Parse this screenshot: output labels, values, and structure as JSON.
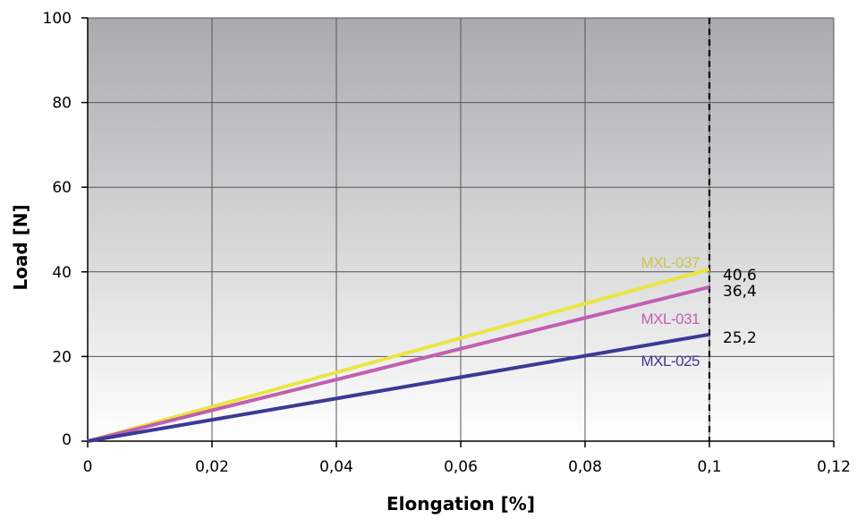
{
  "chart_data": {
    "type": "line",
    "title": "",
    "xlabel": "Elongation [%]",
    "ylabel": "Load [N]",
    "xlim": [
      0,
      0.12
    ],
    "ylim": [
      0,
      100
    ],
    "x_ticks": [
      0,
      0.02,
      0.04,
      0.06,
      0.08,
      0.1,
      0.12
    ],
    "x_tick_labels": [
      "0",
      "0,02",
      "0,04",
      "0,06",
      "0,08",
      "0,1",
      "0,12"
    ],
    "highlight_x": 0.1,
    "highlight_color": "#e02020",
    "y_ticks": [
      0,
      20,
      40,
      60,
      80,
      100
    ],
    "y_tick_labels": [
      "0",
      "20",
      "40",
      "60",
      "80",
      "100"
    ],
    "grid": true,
    "background_gradient": [
      "#a9aaac",
      "#ffffff"
    ],
    "series": [
      {
        "name": "MXL-037",
        "color": "#e8e640",
        "label_color": "#c9c54a",
        "x": [
          0,
          0.1
        ],
        "y": [
          0,
          40.6
        ],
        "end_label": "40,6"
      },
      {
        "name": "MXL-031",
        "color": "#c25fb0",
        "label_color": "#c25fb0",
        "x": [
          0,
          0.1
        ],
        "y": [
          0,
          36.4
        ],
        "end_label": "36,4"
      },
      {
        "name": "MXL-025",
        "color": "#3b3a96",
        "label_color": "#3b3a96",
        "x": [
          0,
          0.1
        ],
        "y": [
          0,
          25.2
        ],
        "end_label": "25,2"
      }
    ]
  }
}
